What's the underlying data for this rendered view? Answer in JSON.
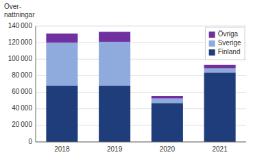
{
  "chart_data": {
    "type": "bar",
    "stacked": true,
    "ylabel": "Över-\nnattningar",
    "categories": [
      "2018",
      "2019",
      "2020",
      "2021"
    ],
    "series": [
      {
        "name": "Finland",
        "color": "#1F3D7A",
        "values": [
          68000,
          68000,
          47000,
          84000
        ]
      },
      {
        "name": "Sverige",
        "color": "#8FAADC",
        "values": [
          52000,
          53000,
          5500,
          5000
        ]
      },
      {
        "name": "Övriga",
        "color": "#7030A0",
        "values": [
          11000,
          12000,
          3000,
          4000
        ]
      }
    ],
    "ylim": [
      0,
      140000
    ],
    "yticks": [
      0,
      {
        "value": 20000,
        "label": "20 000"
      },
      {
        "value": 40000,
        "label": "40 000"
      },
      {
        "value": 60000,
        "label": "60 000"
      },
      {
        "value": 80000,
        "label": "80 000"
      },
      {
        "value": 100000,
        "label": "100 000"
      },
      {
        "value": 120000,
        "label": "120 000"
      },
      {
        "value": 140000,
        "label": "140 000"
      }
    ],
    "grid": true,
    "legend": "upper right"
  }
}
